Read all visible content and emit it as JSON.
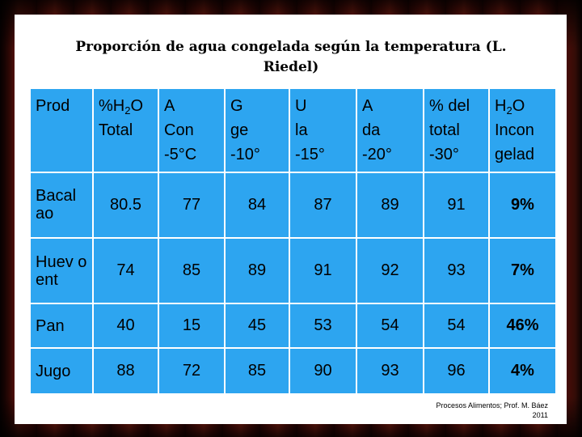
{
  "slide": {
    "title": "Proporción de agua congelada según la temperatura (L. Riedel)",
    "credit_line1": "Procesos Alimentos; Prof. M. Báez",
    "credit_line2": "2011"
  },
  "table": {
    "headers": [
      [
        "Prod"
      ],
      [
        "%H2O",
        "Total"
      ],
      [
        "A",
        "Con",
        "-5°C"
      ],
      [
        "G",
        "ge",
        "-10°"
      ],
      [
        "U",
        "la",
        "-15°"
      ],
      [
        "A",
        "da",
        "-20°"
      ],
      [
        "% del",
        "total",
        "-30°"
      ],
      [
        "H2O",
        "Incon",
        "gelad"
      ]
    ],
    "rows": [
      {
        "product": "Bacal ao",
        "values": [
          "80.5",
          "77",
          "84",
          "87",
          "89",
          "91",
          "9%"
        ]
      },
      {
        "product": "Huev o ent",
        "values": [
          "74",
          "85",
          "89",
          "91",
          "92",
          "93",
          "7%"
        ]
      },
      {
        "product": "Pan",
        "values": [
          "40",
          "15",
          "45",
          "53",
          "54",
          "54",
          "46%"
        ]
      },
      {
        "product": "Jugo",
        "values": [
          "88",
          "72",
          "85",
          "90",
          "93",
          "96",
          "4%"
        ]
      }
    ]
  },
  "colors": {
    "cell_fill": "#2da5f0",
    "cell_border": "#ffffff",
    "curtain": "#8e1a10"
  }
}
